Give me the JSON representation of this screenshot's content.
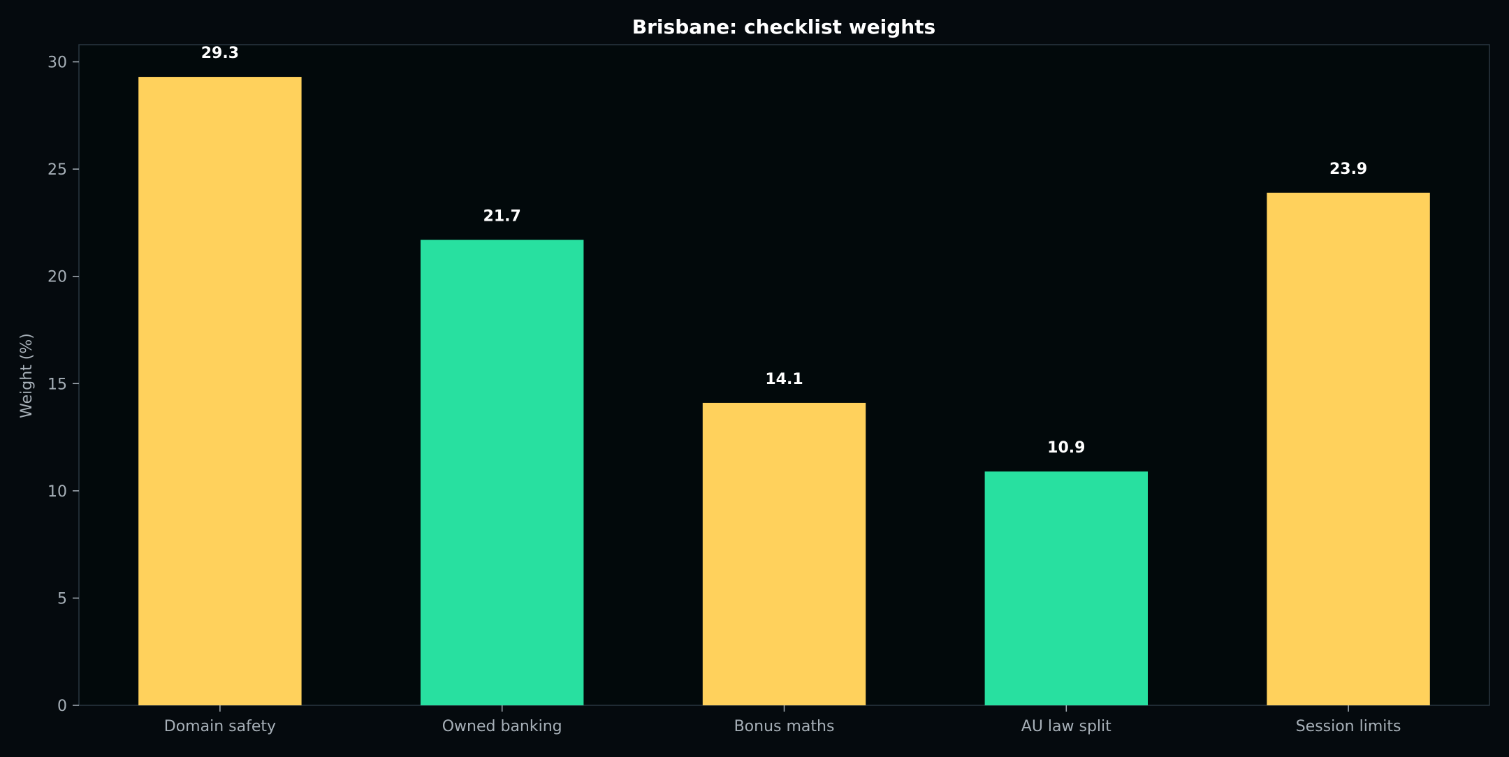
{
  "chart_data": {
    "type": "bar",
    "title": "Brisbane: checklist weights",
    "xlabel": "",
    "ylabel": "Weight (%)",
    "categories": [
      "Domain safety",
      "Owned banking",
      "Bonus maths",
      "AU law split",
      "Session limits"
    ],
    "values": [
      29.3,
      21.7,
      14.1,
      10.9,
      23.9
    ],
    "data_labels": [
      "29.3",
      "21.7",
      "14.1",
      "10.9",
      "23.9"
    ],
    "bar_colors": [
      "#ffd15c",
      "#28e0a0",
      "#ffd15c",
      "#28e0a0",
      "#ffd15c"
    ],
    "ylim": [
      0,
      30.8
    ],
    "yticks": [
      0,
      5,
      10,
      15,
      20,
      25,
      30
    ],
    "grid": false,
    "legend": "none"
  },
  "colors": {
    "background": "#050a0e",
    "plot_background": "#02090b",
    "frame": "#2a3640",
    "tick_text": "#a7b0b8",
    "title_text": "#ffffff",
    "value_label_text": "#ffffff"
  }
}
